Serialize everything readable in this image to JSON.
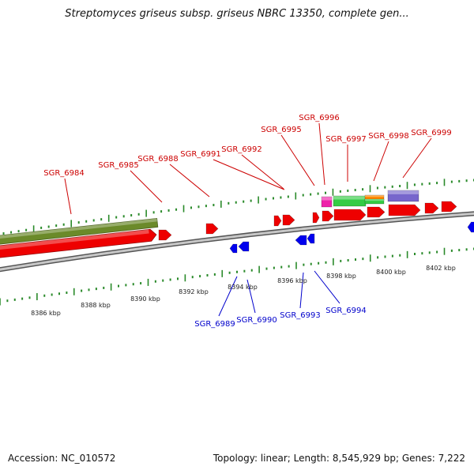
{
  "title": "Streptomyces griseus subsp. griseus NBRC 13350, complete gen...",
  "footer": {
    "accession": "Accession: NC_010572",
    "summary": "Topology: linear; Length: 8,545,929 bp; Genes: 7,222"
  },
  "colors": {
    "forward_label": "#cc0000",
    "reverse_label": "#0000cc",
    "forward_gene": "#ee0000",
    "reverse_gene": "#0000ee",
    "backbone": "#888888",
    "ticks": "#2a8a2a",
    "olive_feature": "#6b8a2a",
    "magenta_feature": "#ee22aa",
    "green_feature": "#33cc44",
    "orange_feature": "#ff8800",
    "purple_feature": "#7766cc"
  },
  "scale_labels": [
    {
      "text": "8386 kbp"
    },
    {
      "text": "8388 kbp"
    },
    {
      "text": "8390 kbp"
    },
    {
      "text": "8392 kbp"
    },
    {
      "text": "8394 kbp"
    },
    {
      "text": "8396 kbp"
    },
    {
      "text": "8398 kbp"
    },
    {
      "text": "8400 kbp"
    },
    {
      "text": "8402 kbp"
    }
  ],
  "forward_genes": [
    {
      "label": "SGR_6984"
    },
    {
      "label": "SGR_6985"
    },
    {
      "label": "SGR_6988"
    },
    {
      "label": "SGR_6991"
    },
    {
      "label": "SGR_6992"
    },
    {
      "label": "SGR_6995"
    },
    {
      "label": "SGR_6996"
    },
    {
      "label": "SGR_6997"
    },
    {
      "label": "SGR_6998"
    },
    {
      "label": "SGR_6999"
    }
  ],
  "reverse_genes": [
    {
      "label": "SGR_6989"
    },
    {
      "label": "SGR_6990"
    },
    {
      "label": "SGR_6993"
    },
    {
      "label": "SGR_6994"
    }
  ]
}
